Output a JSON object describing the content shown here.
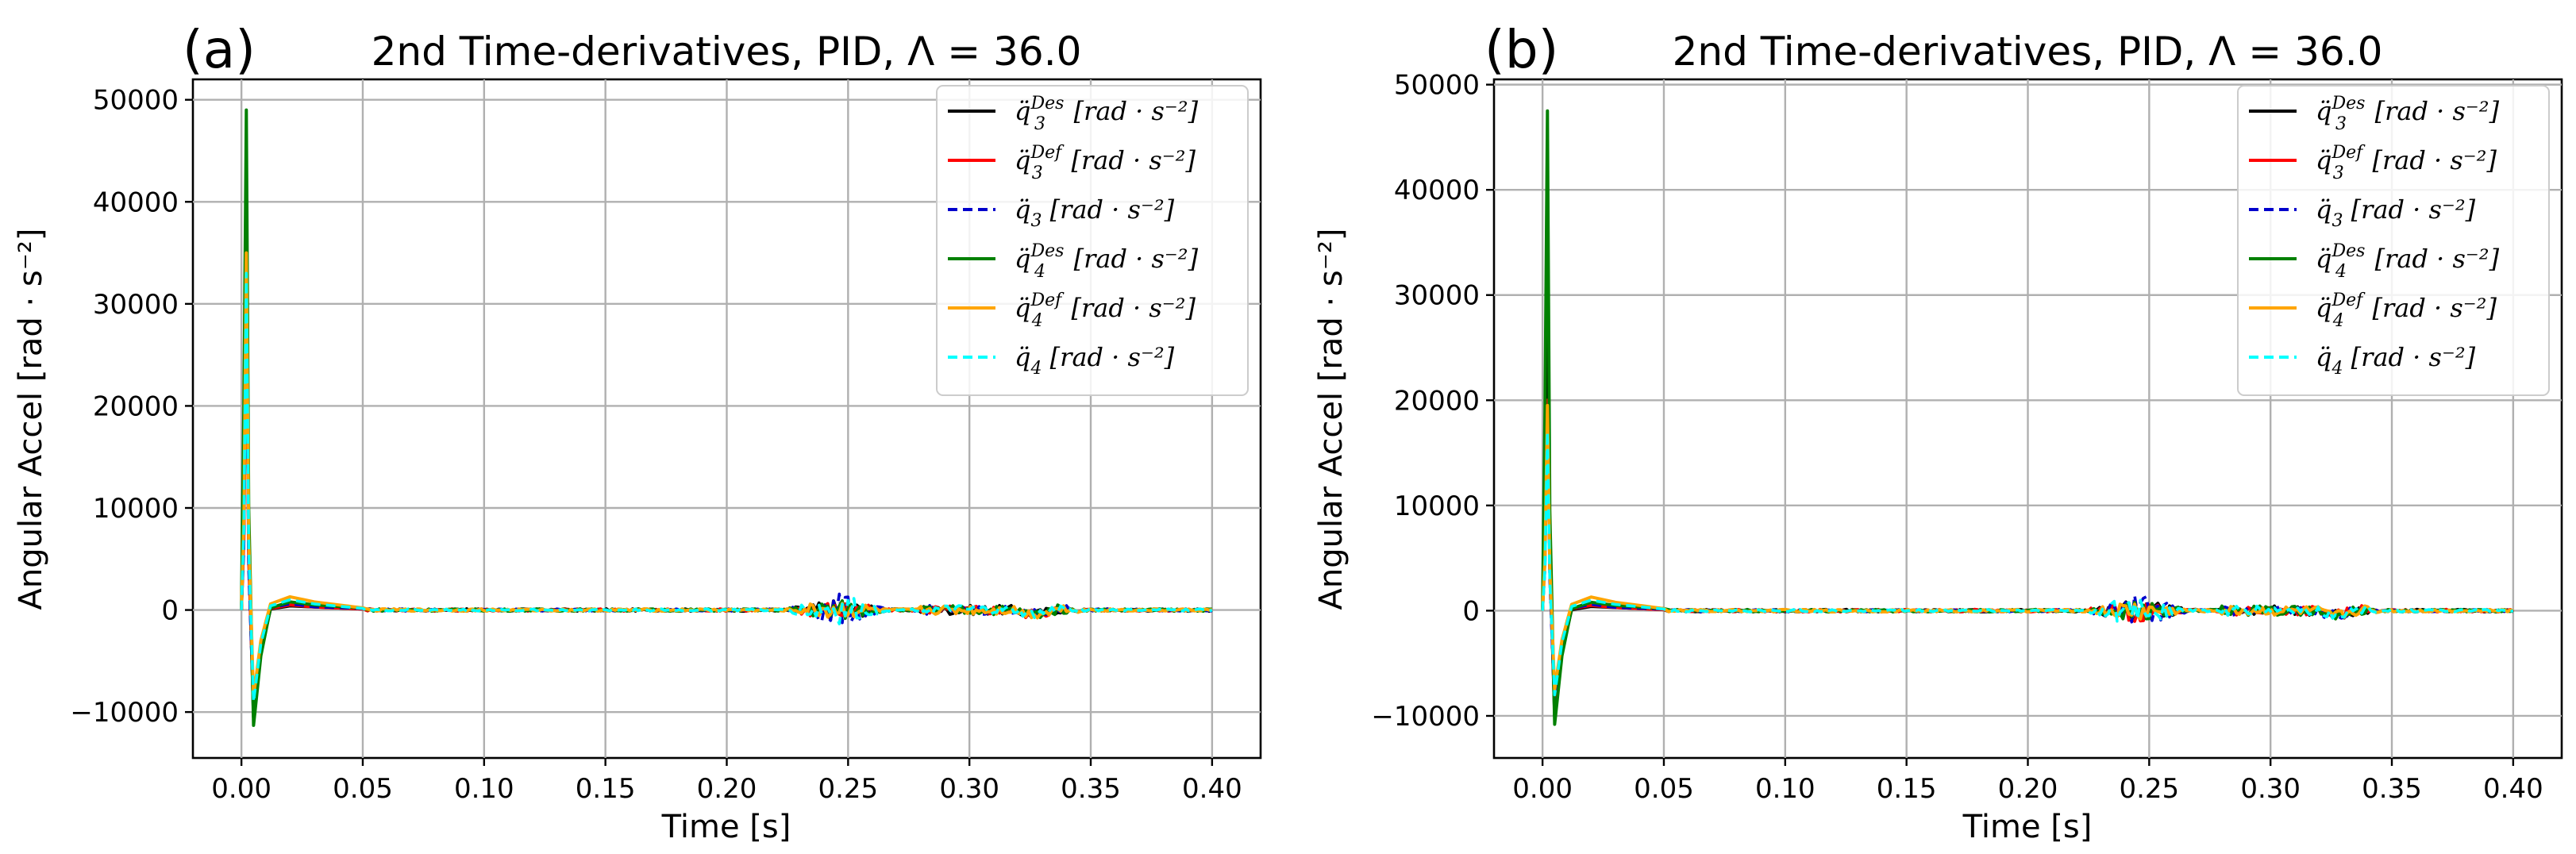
{
  "figure": {
    "colors": {
      "black": "#000000",
      "red": "#ff0000",
      "blue": "#0000cc",
      "green": "#008000",
      "orange": "#ffa500",
      "cyan": "#00ffff",
      "grid": "#b0b0b0"
    }
  },
  "chart_data": [
    {
      "type": "line",
      "panel_label": "(a)",
      "title": "2nd Time-derivatives, PID, Λ = 36.0",
      "xlabel": "Time [s]",
      "ylabel": "Angular Accel [rad · s⁻²]",
      "xlim": [
        -0.02,
        0.42
      ],
      "ylim": [
        -14500,
        52000
      ],
      "xticks": [
        0.0,
        0.05,
        0.1,
        0.15,
        0.2,
        0.25,
        0.3,
        0.35,
        0.4
      ],
      "xtick_labels": [
        "0.00",
        "0.05",
        "0.10",
        "0.15",
        "0.20",
        "0.25",
        "0.30",
        "0.35",
        "0.40"
      ],
      "yticks": [
        -10000,
        0,
        10000,
        20000,
        30000,
        40000,
        50000
      ],
      "ytick_labels": [
        "−10000",
        "0",
        "10000",
        "20000",
        "30000",
        "40000",
        "50000"
      ],
      "grid": true,
      "legend_position": "top-right",
      "legend": [
        {
          "sym": "q̈",
          "sub": "3",
          "sup": "Des",
          "unit": "[rad · s⁻²]",
          "color": "#000000",
          "dash": "solid"
        },
        {
          "sym": "q̈",
          "sub": "3",
          "sup": "Def",
          "unit": "[rad · s⁻²]",
          "color": "#ff0000",
          "dash": "solid"
        },
        {
          "sym": "q̈",
          "sub": "3",
          "sup": "",
          "unit": "[rad · s⁻²]",
          "color": "#0000cc",
          "dash": "dashed"
        },
        {
          "sym": "q̈",
          "sub": "4",
          "sup": "Des",
          "unit": "[rad · s⁻²]",
          "color": "#008000",
          "dash": "solid"
        },
        {
          "sym": "q̈",
          "sub": "4",
          "sup": "Def",
          "unit": "[rad · s⁻²]",
          "color": "#ffa500",
          "dash": "solid"
        },
        {
          "sym": "q̈",
          "sub": "4",
          "sup": "",
          "unit": "[rad · s⁻²]",
          "color": "#00ffff",
          "dash": "dashed"
        }
      ],
      "series": [
        {
          "name": "q3 Des",
          "color": "#000000",
          "dash": "solid",
          "peak": 36000,
          "x": [
            0.0,
            0.001,
            0.002,
            0.003,
            0.005,
            0.008,
            0.012,
            0.02,
            0.03,
            0.05,
            0.1,
            0.2,
            0.25,
            0.3,
            0.33,
            0.4
          ],
          "y": [
            0,
            8000,
            36000,
            6000,
            -10500,
            -4000,
            100,
            400,
            300,
            100,
            0,
            0,
            0,
            0,
            0,
            0
          ]
        },
        {
          "name": "q3 Def",
          "color": "#ff0000",
          "dash": "solid",
          "peak": 32000,
          "x": [
            0.0,
            0.001,
            0.002,
            0.003,
            0.005,
            0.008,
            0.012,
            0.02,
            0.03,
            0.05,
            0.1,
            0.2,
            0.25,
            0.3,
            0.33,
            0.4
          ],
          "y": [
            0,
            7000,
            32000,
            5000,
            -9500,
            -3500,
            150,
            500,
            300,
            100,
            0,
            0,
            0,
            0,
            0,
            0
          ]
        },
        {
          "name": "q3",
          "color": "#0000cc",
          "dash": "dashed",
          "peak": 30000,
          "x": [
            0.0,
            0.001,
            0.002,
            0.003,
            0.005,
            0.008,
            0.012,
            0.02,
            0.03,
            0.05,
            0.1,
            0.2,
            0.25,
            0.3,
            0.33,
            0.4
          ],
          "y": [
            0,
            6000,
            30000,
            4000,
            -10000,
            -3800,
            200,
            600,
            300,
            150,
            50,
            0,
            0,
            0,
            0,
            0
          ]
        },
        {
          "name": "q4 Des",
          "color": "#008000",
          "dash": "solid",
          "peak": 49000,
          "x": [
            0.0,
            0.001,
            0.002,
            0.003,
            0.005,
            0.008,
            0.012,
            0.02,
            0.03,
            0.05,
            0.1,
            0.2,
            0.25,
            0.3,
            0.33,
            0.4
          ],
          "y": [
            0,
            20000,
            49000,
            10000,
            -11300,
            -4500,
            200,
            800,
            500,
            200,
            50,
            0,
            0,
            0,
            0,
            0
          ]
        },
        {
          "name": "q4 Def",
          "color": "#ffa500",
          "dash": "solid",
          "peak": 35000,
          "x": [
            0.0,
            0.001,
            0.002,
            0.003,
            0.005,
            0.008,
            0.012,
            0.02,
            0.03,
            0.05,
            0.1,
            0.2,
            0.25,
            0.3,
            0.33,
            0.4
          ],
          "y": [
            0,
            9000,
            35000,
            7000,
            -8500,
            -3000,
            600,
            1300,
            800,
            200,
            50,
            0,
            0,
            0,
            0,
            0
          ]
        },
        {
          "name": "q4",
          "color": "#00ffff",
          "dash": "dashed",
          "peak": 33000,
          "x": [
            0.0,
            0.001,
            0.002,
            0.003,
            0.005,
            0.008,
            0.012,
            0.02,
            0.03,
            0.05,
            0.1,
            0.2,
            0.25,
            0.3,
            0.33,
            0.4
          ],
          "y": [
            0,
            8000,
            33000,
            6000,
            -9000,
            -3300,
            400,
            1000,
            600,
            150,
            50,
            0,
            0,
            0,
            0,
            0
          ]
        }
      ]
    },
    {
      "type": "line",
      "panel_label": "(b)",
      "title": "2nd Time-derivatives, PID, Λ = 36.0",
      "xlabel": "Time [s]",
      "ylabel": "Angular Accel [rad · s⁻²]",
      "xlim": [
        -0.02,
        0.42
      ],
      "ylim": [
        -14000,
        50500
      ],
      "xticks": [
        0.0,
        0.05,
        0.1,
        0.15,
        0.2,
        0.25,
        0.3,
        0.35,
        0.4
      ],
      "xtick_labels": [
        "0.00",
        "0.05",
        "0.10",
        "0.15",
        "0.20",
        "0.25",
        "0.30",
        "0.35",
        "0.40"
      ],
      "yticks": [
        -10000,
        0,
        10000,
        20000,
        30000,
        40000,
        50000
      ],
      "ytick_labels": [
        "−10000",
        "0",
        "10000",
        "20000",
        "30000",
        "40000",
        "50000"
      ],
      "grid": true,
      "legend_position": "top-right",
      "legend": [
        {
          "sym": "q̈",
          "sub": "3",
          "sup": "Des",
          "unit": "[rad · s⁻²]",
          "color": "#000000",
          "dash": "solid"
        },
        {
          "sym": "q̈",
          "sub": "3",
          "sup": "Def",
          "unit": "[rad · s⁻²]",
          "color": "#ff0000",
          "dash": "solid"
        },
        {
          "sym": "q̈",
          "sub": "3",
          "sup": "",
          "unit": "[rad · s⁻²]",
          "color": "#0000cc",
          "dash": "dashed"
        },
        {
          "sym": "q̈",
          "sub": "4",
          "sup": "Des",
          "unit": "[rad · s⁻²]",
          "color": "#008000",
          "dash": "solid"
        },
        {
          "sym": "q̈",
          "sub": "4",
          "sup": "Def",
          "unit": "[rad · s⁻²]",
          "color": "#ffa500",
          "dash": "solid"
        },
        {
          "sym": "q̈",
          "sub": "4",
          "sup": "",
          "unit": "[rad · s⁻²]",
          "color": "#00ffff",
          "dash": "dashed"
        }
      ],
      "series": [
        {
          "name": "q3 Des",
          "color": "#000000",
          "dash": "solid",
          "peak": 30000,
          "x": [
            0.0,
            0.001,
            0.002,
            0.003,
            0.005,
            0.008,
            0.012,
            0.02,
            0.03,
            0.05,
            0.1,
            0.2,
            0.25,
            0.3,
            0.33,
            0.4
          ],
          "y": [
            0,
            7000,
            30000,
            5000,
            -10000,
            -3800,
            100,
            400,
            300,
            100,
            0,
            0,
            0,
            0,
            0,
            0
          ]
        },
        {
          "name": "q3 Def",
          "color": "#ff0000",
          "dash": "solid",
          "peak": 20000,
          "x": [
            0.0,
            0.001,
            0.002,
            0.003,
            0.005,
            0.008,
            0.012,
            0.02,
            0.03,
            0.05,
            0.1,
            0.2,
            0.25,
            0.3,
            0.33,
            0.4
          ],
          "y": [
            0,
            5000,
            20000,
            4000,
            -9000,
            -3400,
            200,
            500,
            300,
            100,
            0,
            0,
            0,
            0,
            0,
            0
          ]
        },
        {
          "name": "q3",
          "color": "#0000cc",
          "dash": "dashed",
          "peak": 18000,
          "x": [
            0.0,
            0.001,
            0.002,
            0.003,
            0.005,
            0.008,
            0.012,
            0.02,
            0.03,
            0.05,
            0.1,
            0.2,
            0.25,
            0.3,
            0.33,
            0.4
          ],
          "y": [
            0,
            4000,
            18000,
            3000,
            -9500,
            -3600,
            200,
            600,
            300,
            150,
            50,
            0,
            0,
            0,
            0,
            0
          ]
        },
        {
          "name": "q4 Des",
          "color": "#008000",
          "dash": "solid",
          "peak": 47500,
          "x": [
            0.0,
            0.001,
            0.002,
            0.003,
            0.005,
            0.008,
            0.012,
            0.02,
            0.03,
            0.05,
            0.1,
            0.2,
            0.25,
            0.3,
            0.33,
            0.4
          ],
          "y": [
            0,
            19000,
            47500,
            9500,
            -10800,
            -4300,
            200,
            800,
            500,
            200,
            50,
            0,
            0,
            0,
            0,
            0
          ]
        },
        {
          "name": "q4 Def",
          "color": "#ffa500",
          "dash": "solid",
          "peak": 19500,
          "x": [
            0.0,
            0.001,
            0.002,
            0.003,
            0.005,
            0.008,
            0.012,
            0.02,
            0.03,
            0.05,
            0.1,
            0.2,
            0.25,
            0.3,
            0.33,
            0.4
          ],
          "y": [
            0,
            5000,
            19500,
            4000,
            -7500,
            -2800,
            600,
            1300,
            800,
            200,
            50,
            0,
            0,
            0,
            0,
            0
          ]
        },
        {
          "name": "q4",
          "color": "#00ffff",
          "dash": "dashed",
          "peak": 17000,
          "x": [
            0.0,
            0.001,
            0.002,
            0.003,
            0.005,
            0.008,
            0.012,
            0.02,
            0.03,
            0.05,
            0.1,
            0.2,
            0.25,
            0.3,
            0.33,
            0.4
          ],
          "y": [
            0,
            4000,
            17000,
            3000,
            -8000,
            -3000,
            400,
            1000,
            600,
            150,
            50,
            0,
            0,
            0,
            0,
            0
          ]
        }
      ]
    }
  ]
}
